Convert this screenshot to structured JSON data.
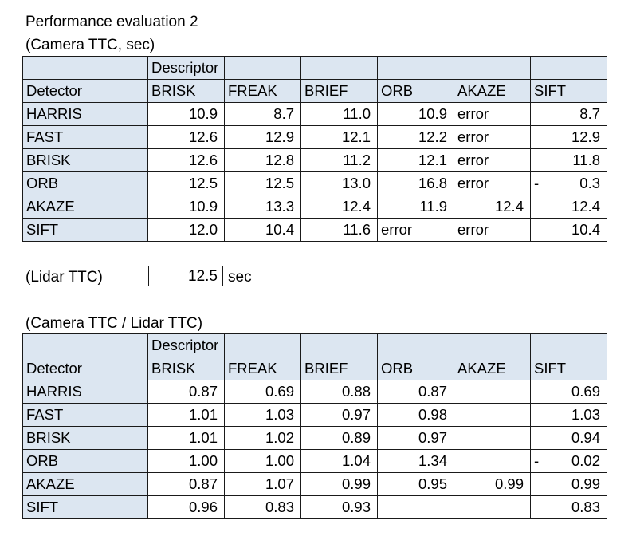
{
  "title": "Performance evaluation 2",
  "table1": {
    "caption": "(Camera TTC, sec)",
    "group_header": "Descriptor",
    "row_header_label": "Detector",
    "columns": [
      "BRISK",
      "FREAK",
      "BRIEF",
      "ORB",
      "AKAZE",
      "SIFT"
    ],
    "rows": [
      {
        "detector": "HARRIS",
        "cells": [
          "10.9",
          "8.7",
          "11.0",
          "10.9",
          "error",
          "8.7"
        ]
      },
      {
        "detector": "FAST",
        "cells": [
          "12.6",
          "12.9",
          "12.1",
          "12.2",
          "error",
          "12.9"
        ]
      },
      {
        "detector": "BRISK",
        "cells": [
          "12.6",
          "12.8",
          "11.2",
          "12.1",
          "error",
          "11.8"
        ]
      },
      {
        "detector": "ORB",
        "cells": [
          "12.5",
          "12.5",
          "13.0",
          "16.8",
          "error",
          "0.3"
        ],
        "sift_prefix": "-"
      },
      {
        "detector": "AKAZE",
        "cells": [
          "10.9",
          "13.3",
          "12.4",
          "11.9",
          "12.4",
          "12.4"
        ]
      },
      {
        "detector": "SIFT",
        "cells": [
          "12.0",
          "10.4",
          "11.6",
          "error",
          "error",
          "10.4"
        ]
      }
    ]
  },
  "lidar": {
    "label": "(Lidar TTC)",
    "value": "12.5",
    "unit": "sec"
  },
  "table2": {
    "caption": "(Camera TTC / Lidar TTC)",
    "group_header": "Descriptor",
    "row_header_label": "Detector",
    "columns": [
      "BRISK",
      "FREAK",
      "BRIEF",
      "ORB",
      "AKAZE",
      "SIFT"
    ],
    "rows": [
      {
        "detector": "HARRIS",
        "cells": [
          "0.87",
          "0.69",
          "0.88",
          "0.87",
          "",
          "0.69"
        ]
      },
      {
        "detector": "FAST",
        "cells": [
          "1.01",
          "1.03",
          "0.97",
          "0.98",
          "",
          "1.03"
        ]
      },
      {
        "detector": "BRISK",
        "cells": [
          "1.01",
          "1.02",
          "0.89",
          "0.97",
          "",
          "0.94"
        ]
      },
      {
        "detector": "ORB",
        "cells": [
          "1.00",
          "1.00",
          "1.04",
          "1.34",
          "",
          "0.02"
        ],
        "sift_prefix": "-"
      },
      {
        "detector": "AKAZE",
        "cells": [
          "0.87",
          "1.07",
          "0.99",
          "0.95",
          "0.99",
          "0.99"
        ]
      },
      {
        "detector": "SIFT",
        "cells": [
          "0.96",
          "0.83",
          "0.93",
          "",
          "",
          "0.83"
        ]
      }
    ]
  },
  "colors": {
    "header_fill": "#dce6f1",
    "border": "#1a1a1a"
  }
}
